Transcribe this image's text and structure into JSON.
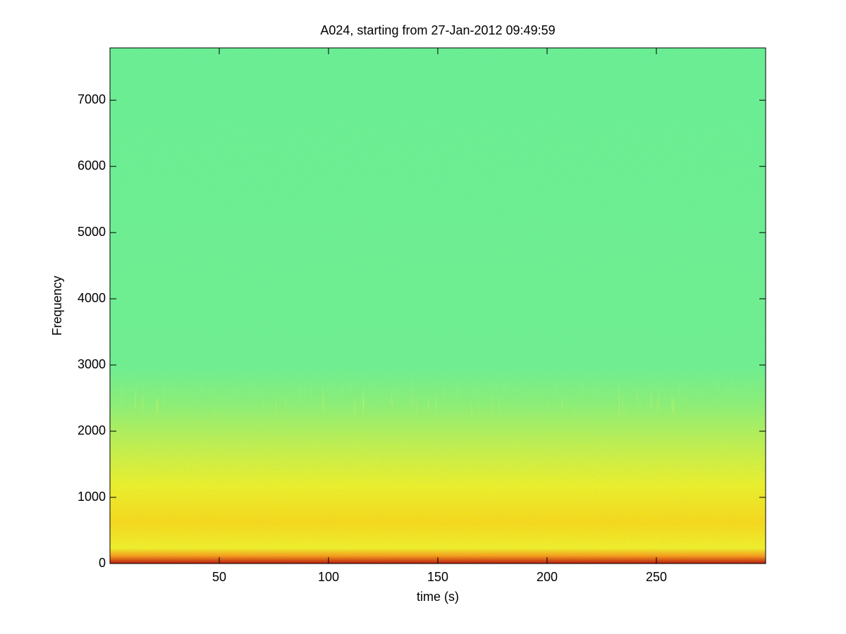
{
  "chart_data": {
    "type": "spectrogram",
    "title": "A024, starting from 27-Jan-2012 09:49:59",
    "xlabel": "time (s)",
    "ylabel": "Frequency",
    "xlim": [
      0,
      300
    ],
    "xticks": [
      50,
      100,
      150,
      200,
      250
    ],
    "ylim": [
      0,
      7790
    ],
    "yticks": [
      0,
      1000,
      2000,
      3000,
      4000,
      5000,
      6000,
      7000
    ],
    "grid": false
  }
}
